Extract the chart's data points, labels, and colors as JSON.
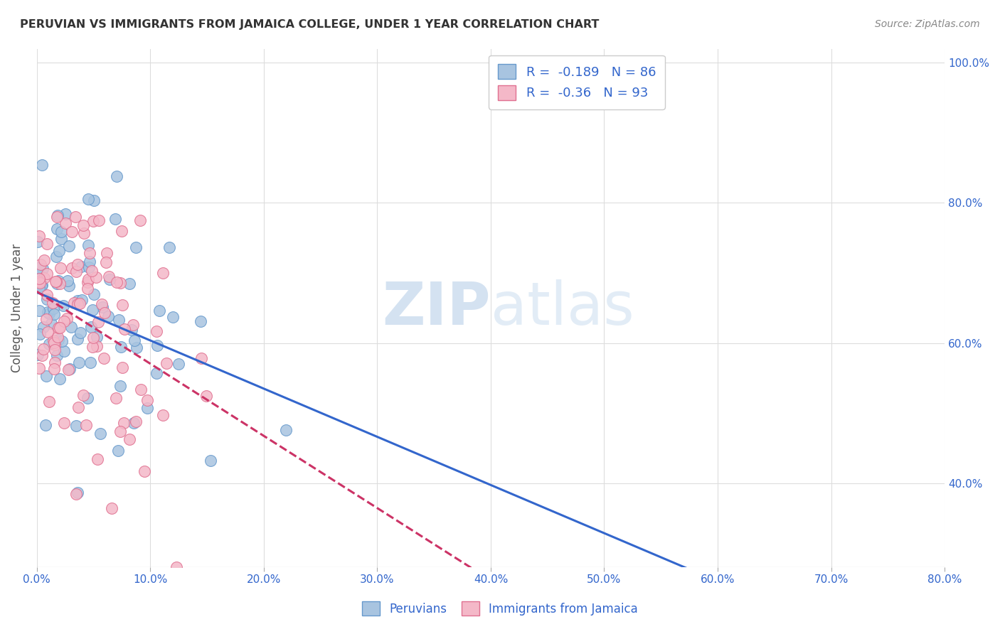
{
  "title": "PERUVIAN VS IMMIGRANTS FROM JAMAICA COLLEGE, UNDER 1 YEAR CORRELATION CHART",
  "source": "Source: ZipAtlas.com",
  "ylabel": "College, Under 1 year",
  "xlim": [
    0.0,
    0.8
  ],
  "ylim": [
    0.28,
    1.02
  ],
  "peruvian_color": "#a8c4e0",
  "peruvian_edge_color": "#6699cc",
  "jamaica_color": "#f4b8c8",
  "jamaica_edge_color": "#e07090",
  "trendline_peruvian_color": "#3366cc",
  "trendline_jamaica_color": "#cc3366",
  "legend_text_color": "#3366cc",
  "title_color": "#333333",
  "grid_color": "#dddddd",
  "R_peruvian": -0.189,
  "N_peruvian": 86,
  "R_jamaica": -0.36,
  "N_jamaica": 93,
  "x_tick_vals": [
    0.0,
    0.1,
    0.2,
    0.3,
    0.4,
    0.5,
    0.6,
    0.7,
    0.8
  ],
  "y_tick_vals": [
    0.4,
    0.6,
    0.8,
    1.0
  ]
}
